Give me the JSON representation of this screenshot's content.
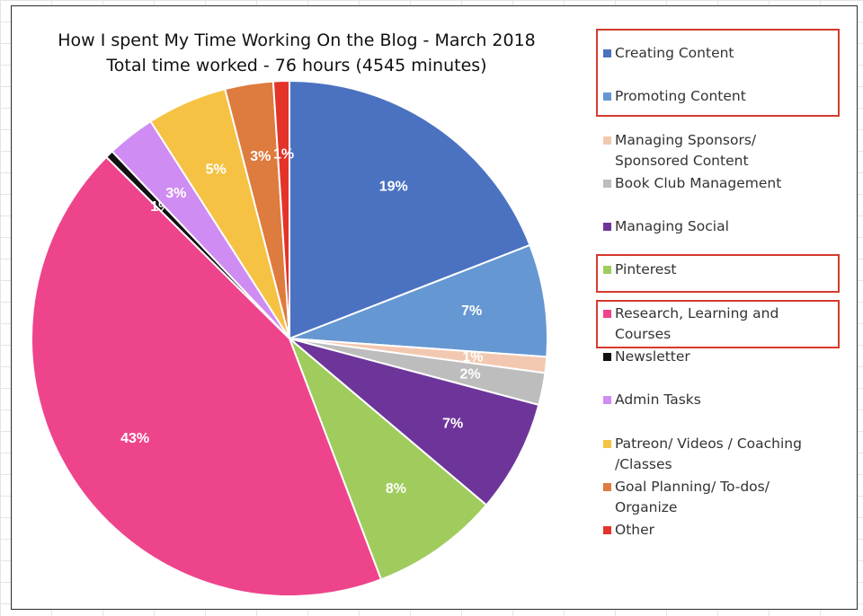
{
  "chart_data": {
    "type": "pie",
    "title": "How I spent My Time Working On the Blog - March 2018",
    "subtitle": "Total time worked - 76 hours (4545 minutes)",
    "slices": [
      {
        "name": "Creating Content",
        "value": 19,
        "label": "19%",
        "color": "#4a72c0"
      },
      {
        "name": "Promoting Content",
        "value": 7,
        "label": "7%",
        "color": "#6597d2"
      },
      {
        "name": "Managing Sponsors/ Sponsored Content",
        "value": 1,
        "label": "1%",
        "color": "#f3c8b0"
      },
      {
        "name": "Book Club Management",
        "value": 2,
        "label": "2%",
        "color": "#bdbdbd"
      },
      {
        "name": "Managing Social",
        "value": 7,
        "label": "7%",
        "color": "#6d3599"
      },
      {
        "name": "Pinterest",
        "value": 8,
        "label": "8%",
        "color": "#9fcc5c"
      },
      {
        "name": "Research, Learning and Courses",
        "value": 43,
        "label": "43%",
        "color": "#ee448b"
      },
      {
        "name": "Newsletter",
        "value": 0.5,
        "label": "1%",
        "color": "#111111"
      },
      {
        "name": "Admin Tasks",
        "value": 3,
        "label": "3%",
        "color": "#cf8cf2"
      },
      {
        "name": "Patreon/ Videos / Coaching /Classes",
        "value": 5,
        "label": "5%",
        "color": "#f5c243"
      },
      {
        "name": "Goal Planning/ To-dos/ Organize",
        "value": 3,
        "label": "3%",
        "color": "#de7b3e"
      },
      {
        "name": "Other",
        "value": 1,
        "label": "1%",
        "color": "#e4342a"
      }
    ],
    "legend_position": "right",
    "highlighted_legend_entries": [
      "Creating Content",
      "Promoting Content",
      "Pinterest",
      "Research, Learning and Courses"
    ],
    "highlight_color": "#d53a2e"
  },
  "legend": [
    {
      "line1": "Creating Content",
      "line2": ""
    },
    {
      "line1": "Promoting Content",
      "line2": ""
    },
    {
      "line1": "Managing Sponsors/",
      "line2": "Sponsored Content"
    },
    {
      "line1": "Book Club Management",
      "line2": ""
    },
    {
      "line1": "Managing Social",
      "line2": ""
    },
    {
      "line1": "Pinterest",
      "line2": ""
    },
    {
      "line1": "Research, Learning and",
      "line2": "Courses"
    },
    {
      "line1": "Newsletter",
      "line2": ""
    },
    {
      "line1": "Admin Tasks",
      "line2": ""
    },
    {
      "line1": "Patreon/ Videos / Coaching",
      "line2": "/Classes"
    },
    {
      "line1": "Goal Planning/ To-dos/",
      "line2": "Organize"
    },
    {
      "line1": "Other",
      "line2": ""
    }
  ]
}
